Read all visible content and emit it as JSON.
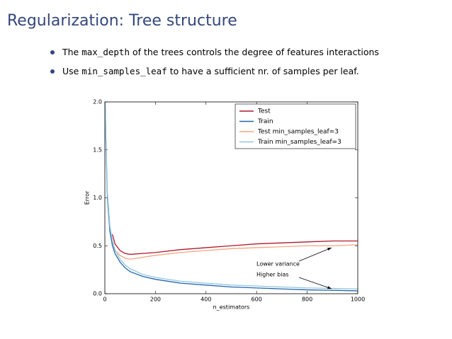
{
  "title": "Regularization: Tree structure",
  "bullets": [
    [
      "The ",
      "max_depth",
      " of the trees controls the degree of features interactions"
    ],
    [
      "Use ",
      "min_samples_leaf",
      " to have a sufficient nr. of samples per leaf."
    ]
  ],
  "chart_data": {
    "type": "line",
    "x_label": "n_estimators",
    "y_label": "Error",
    "x": [
      1,
      5,
      10,
      20,
      30,
      40,
      60,
      80,
      100,
      150,
      200,
      300,
      400,
      500,
      600,
      700,
      800,
      900,
      1000
    ],
    "series": [
      {
        "name": "Test",
        "color": "#b2182b",
        "values": [
          null,
          null,
          null,
          null,
          0.62,
          0.52,
          0.45,
          0.42,
          0.41,
          0.42,
          0.43,
          0.46,
          0.48,
          0.5,
          0.52,
          0.53,
          0.54,
          0.55,
          0.55
        ]
      },
      {
        "name": "Train",
        "color": "#2166ac",
        "values": [
          2.0,
          1.5,
          1.0,
          0.65,
          0.5,
          0.42,
          0.33,
          0.27,
          0.23,
          0.18,
          0.15,
          0.11,
          0.09,
          0.07,
          0.06,
          0.05,
          0.04,
          0.035,
          0.03
        ]
      },
      {
        "name": "Test min_samples_leaf=3",
        "color": "#f4a582",
        "values": [
          null,
          null,
          null,
          null,
          0.55,
          0.45,
          0.4,
          0.37,
          0.36,
          0.38,
          0.4,
          0.43,
          0.45,
          0.47,
          0.48,
          0.49,
          0.5,
          0.5,
          0.51
        ]
      },
      {
        "name": "Train min_samples_leaf=3",
        "color": "#92c5de",
        "values": [
          2.0,
          1.55,
          1.05,
          0.7,
          0.55,
          0.46,
          0.36,
          0.3,
          0.26,
          0.2,
          0.17,
          0.13,
          0.11,
          0.09,
          0.08,
          0.07,
          0.06,
          0.055,
          0.05
        ]
      }
    ],
    "xlim": [
      0,
      1000
    ],
    "xticks": [
      0,
      200,
      400,
      600,
      800,
      1000
    ],
    "ylim": [
      0,
      2
    ],
    "yticks": [
      {
        "value": 0,
        "label": "0.0"
      },
      {
        "value": 0.5,
        "label": "0.5"
      },
      {
        "value": 1,
        "label": "1.0"
      },
      {
        "value": 1.5,
        "label": "1.5"
      },
      {
        "value": 2,
        "label": "2.0"
      }
    ],
    "legend": "upper right",
    "annotations": [
      "Lower variance",
      "Higher bias"
    ]
  }
}
